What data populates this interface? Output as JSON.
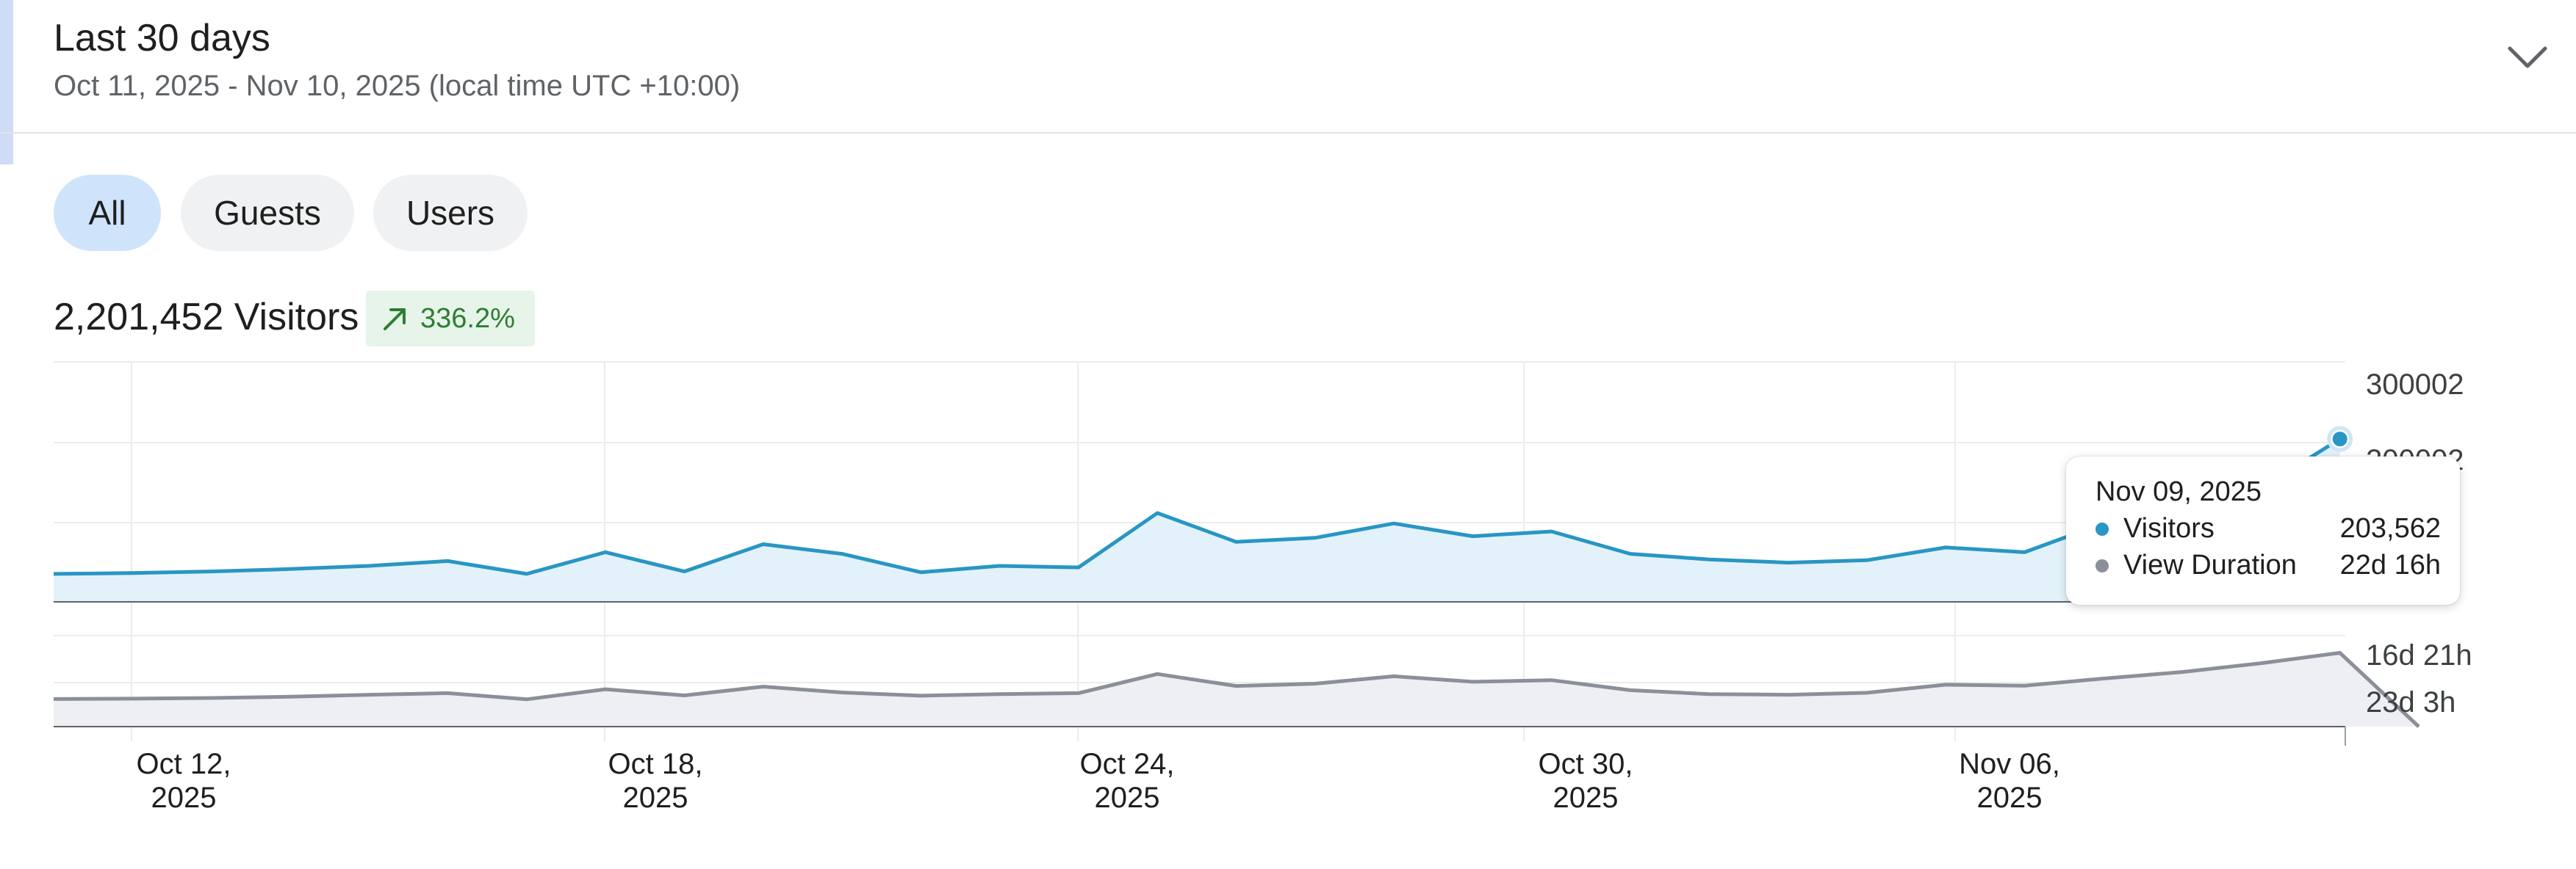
{
  "header": {
    "title": "Last 30 days",
    "subtitle": "Oct 11, 2025 - Nov 10, 2025 (local time UTC +10:00)",
    "expand_icon": "chevron-down-icon"
  },
  "filters": [
    {
      "label": "All",
      "active": true
    },
    {
      "label": "Guests",
      "active": false
    },
    {
      "label": "Users",
      "active": false
    }
  ],
  "metric": {
    "total": "2,201,452 Visitors",
    "delta": "336.2%",
    "delta_icon": "arrow-up-right-icon",
    "delta_color": "#2e7d32"
  },
  "tooltip": {
    "date": "Nov 09, 2025",
    "rows": [
      {
        "label": "Visitors",
        "value": "203,562",
        "color": "#2996c4"
      },
      {
        "label": "View Duration",
        "value": "22d 16h",
        "color": "#8a8f99"
      }
    ]
  },
  "chart_data": [
    {
      "type": "area",
      "name": "visitors-chart",
      "x_start": "2025-10-11",
      "x_end": "2025-11-10",
      "x": [
        "Oct 11",
        "Oct 12",
        "Oct 13",
        "Oct 14",
        "Oct 15",
        "Oct 16",
        "Oct 17",
        "Oct 18",
        "Oct 19",
        "Oct 20",
        "Oct 21",
        "Oct 22",
        "Oct 23",
        "Oct 24",
        "Oct 25",
        "Oct 26",
        "Oct 27",
        "Oct 28",
        "Oct 29",
        "Oct 30",
        "Oct 31",
        "Nov 01",
        "Nov 02",
        "Nov 03",
        "Nov 04",
        "Nov 05",
        "Nov 06",
        "Nov 07",
        "Nov 08",
        "Nov 09"
      ],
      "series": [
        {
          "name": "Visitors",
          "color": "#2996c4",
          "values": [
            35000,
            36000,
            38000,
            41000,
            45000,
            51000,
            35000,
            62000,
            38000,
            72000,
            60000,
            37000,
            45000,
            43000,
            111000,
            75000,
            80000,
            98000,
            82000,
            88000,
            60000,
            53000,
            49000,
            52000,
            68000,
            62000,
            98000,
            112000,
            142000,
            203562
          ]
        }
      ],
      "ylim": [
        0,
        300002
      ],
      "y_tick_labels": [
        "300002",
        "200002"
      ],
      "grid": true
    },
    {
      "type": "area",
      "name": "view-duration-chart",
      "series": [
        {
          "name": "View Duration",
          "color": "#8a8f99",
          "values": [
            8.5,
            8.6,
            8.8,
            9.2,
            9.8,
            10.3,
            8.4,
            11.5,
            9.6,
            12.3,
            10.5,
            9.5,
            10.0,
            10.3,
            16.2,
            12.5,
            13.2,
            15.5,
            13.8,
            14.3,
            11.2,
            10.0,
            9.8,
            10.4,
            12.9,
            12.6,
            14.8,
            16.8,
            19.5,
            22.7,
            0
          ]
        }
      ],
      "y_tick_labels": [
        "16d 21h",
        "23d 3h"
      ],
      "x_tick_labels": [
        {
          "line1": "Oct 12,",
          "line2": "2025"
        },
        {
          "line1": "Oct 18,",
          "line2": "2025"
        },
        {
          "line1": "Oct 24,",
          "line2": "2025"
        },
        {
          "line1": "Oct 30,",
          "line2": "2025"
        },
        {
          "line1": "Nov 06,",
          "line2": "2025"
        }
      ],
      "grid": true
    }
  ]
}
